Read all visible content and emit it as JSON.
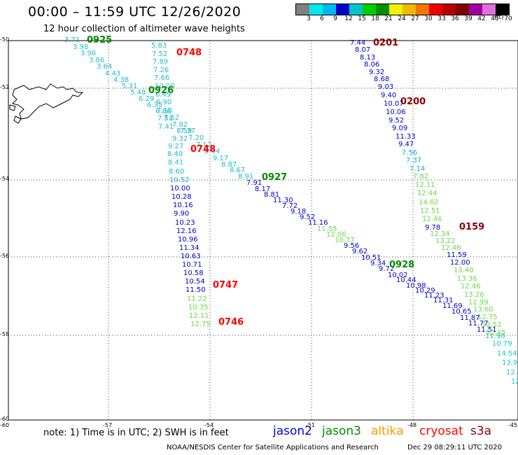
{
  "title": "00:00 – 11:59 UTC 12/26/2020",
  "subtitle": "12 hour collection of altimeter wave heights",
  "color_scale": {
    "colors": [
      "#808080",
      "#00e8e8",
      "#00b8f0",
      "#0000c8",
      "#00c8c8",
      "#00d000",
      "#009000",
      "#f0f000",
      "#f0b800",
      "#f07800",
      "#f00000",
      "#b80000",
      "#800000",
      "#a000a0",
      "#e070e0",
      "#000000"
    ],
    "ticks": [
      "3",
      "6",
      "9",
      "12",
      "15",
      "18",
      "21",
      "24",
      "27",
      "30",
      "33",
      "36",
      "39",
      "42",
      "45",
      "70"
    ],
    "unit": "(ft)"
  },
  "axes": {
    "lat_labels": [
      "-50",
      "-52",
      "-54",
      "-56",
      "-58",
      "-60"
    ],
    "lon_labels": [
      "-60",
      "-57",
      "-54",
      "-51",
      "-48",
      "-45"
    ]
  },
  "note": "note:  1) Time is in UTC;  2) SWH is in feet",
  "satellites": [
    {
      "name": "jason2",
      "color": "#0000d0"
    },
    {
      "name": "jason3",
      "color": "#008800"
    },
    {
      "name": "altika",
      "color": "#ff9900"
    },
    {
      "name": "cryosat",
      "color": "#ff0000"
    },
    {
      "name": "s3a",
      "color": "#8b0000"
    }
  ],
  "credit": "NOAA/NESDIS Center for Satellite Applications and Research",
  "timestamp": "Dec 29 08:29:11 UTC 2020",
  "time_labels": [
    {
      "text": "0925",
      "color": "#008800"
    },
    {
      "text": "0748",
      "color": "#ff0000"
    },
    {
      "text": "0926",
      "color": "#008800"
    },
    {
      "text": "0748",
      "color": "#ff0000"
    },
    {
      "text": "0927",
      "color": "#008800"
    },
    {
      "text": "0747",
      "color": "#ff0000"
    },
    {
      "text": "0746",
      "color": "#ff0000"
    },
    {
      "text": "0201",
      "color": "#8b0000"
    },
    {
      "text": "0200",
      "color": "#8b0000"
    },
    {
      "text": "0159",
      "color": "#8b0000"
    },
    {
      "text": "0928",
      "color": "#008800"
    }
  ],
  "tracks": {
    "cryosat_track": {
      "color": "#1fbccc",
      "values": [
        "5.83",
        "7.52",
        "7.89",
        "7.26",
        "7.66",
        "10.00",
        "6.49",
        "6.90",
        "7.10",
        "7.51",
        "7.41"
      ]
    },
    "cryosat_track_lower": {
      "values": [
        "8.59",
        "9.32",
        "9.27",
        "8.40",
        "8.41",
        "8.60",
        "10.52",
        "10.00",
        "10.28",
        "10.16",
        "9.90",
        "10.23",
        "12.16",
        "10.96",
        "11.34",
        "10.63",
        "10.71",
        "10.58",
        "10.54",
        "11.50",
        "11.22",
        "10.35",
        "12.11",
        "12.75"
      ]
    },
    "jason3_track": {
      "values": [
        "3.71",
        "3.98",
        "3.96",
        "3.86",
        "3.64",
        "4.43",
        "4.38",
        "5.31",
        "5.48",
        "6.29",
        "6.35",
        "6.86",
        "7.62",
        "7.82",
        "7.37",
        "7.20",
        "7.12",
        "8.94",
        "9.17",
        "8.87",
        "8.67",
        "8.91",
        "7.91",
        "8.17",
        "8.81",
        "11.30",
        "7.72",
        "9.18",
        "9.52",
        "11.16",
        "11.55",
        "12.06",
        "10.77",
        "9.56",
        "9.62",
        "10.51",
        "9.34",
        "9.72",
        "10.02",
        "10.44",
        "10.98",
        "10.29",
        "11.23",
        "11.31",
        "11.69",
        "10.65",
        "11.87",
        "11.77",
        "11.51",
        "11.96",
        "10.79",
        "14.54",
        "13.9",
        "12.",
        "12"
      ]
    },
    "s3a_track": {
      "values": [
        "7.44",
        "8.07",
        "8.13",
        "8.06",
        "9.32",
        "8.68",
        "9.03",
        "9.40",
        "10.07",
        "10.06",
        "9.52",
        "9.09",
        "11.33",
        "9.47",
        "7.56",
        "7.37",
        "7.14",
        "7.82",
        "12.11",
        "12.44",
        "14.62",
        "12.51",
        "12.46",
        "9.78",
        "12.34",
        "13.22",
        "12.46",
        "11.59",
        "12.00",
        "13.40",
        "13.36",
        "12.46",
        "13.26",
        "12.99",
        "13.60",
        "12.75",
        "12.52",
        "12.45"
      ]
    }
  }
}
